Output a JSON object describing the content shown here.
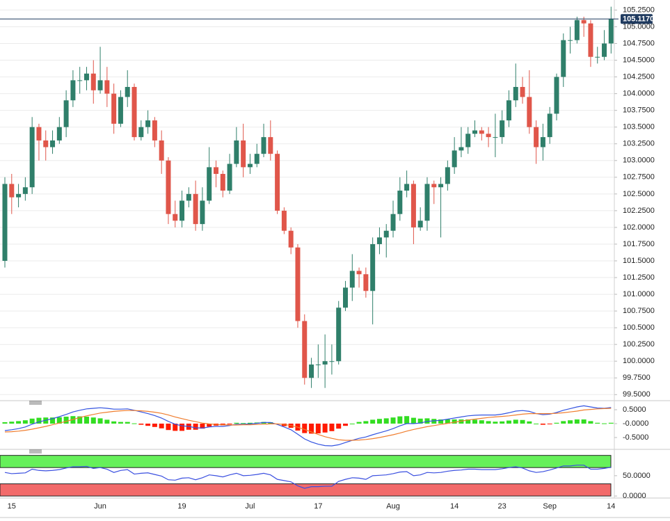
{
  "chart_data": [
    {
      "type": "candlestick",
      "categories": [
        null,
        "15",
        null,
        null,
        null,
        null,
        null,
        null,
        null,
        null,
        null,
        null,
        null,
        null,
        "Jun",
        null,
        null,
        null,
        null,
        null,
        null,
        null,
        null,
        null,
        null,
        null,
        "19",
        null,
        null,
        null,
        null,
        null,
        null,
        null,
        null,
        null,
        "Jul",
        null,
        null,
        null,
        null,
        null,
        null,
        null,
        null,
        null,
        "17",
        null,
        null,
        null,
        null,
        null,
        null,
        null,
        null,
        null,
        null,
        "Aug",
        null,
        null,
        null,
        null,
        null,
        null,
        null,
        null,
        "14",
        null,
        null,
        null,
        null,
        null,
        null,
        "23",
        null,
        null,
        null,
        null,
        null,
        null,
        "Sep",
        null,
        null,
        null,
        null,
        null,
        null,
        null,
        null,
        "14"
      ],
      "open": [
        101.5,
        102.65,
        102.45,
        102.5,
        102.6,
        103.5,
        103.3,
        103.2,
        103.3,
        103.5,
        103.9,
        104.2,
        104.2,
        104.3,
        104.05,
        104.2,
        104.0,
        103.55,
        103.95,
        104.1,
        103.35,
        103.5,
        103.6,
        103.3,
        103.0,
        102.2,
        102.1,
        102.4,
        102.5,
        102.05,
        102.4,
        102.9,
        102.8,
        102.55,
        102.95,
        103.3,
        102.9,
        102.95,
        103.1,
        103.35,
        103.1,
        102.25,
        101.95,
        101.7,
        100.6,
        99.75,
        99.95,
        99.95,
        100.0,
        100.0,
        100.8,
        101.1,
        101.35,
        101.3,
        101.05,
        101.75,
        101.85,
        101.95,
        102.2,
        102.55,
        102.65,
        102.0,
        102.1,
        102.65,
        102.6,
        102.65,
        102.9,
        103.15,
        103.2,
        103.4,
        103.45,
        103.4,
        103.35,
        103.35,
        103.6,
        103.9,
        104.1,
        103.95,
        103.5,
        103.2,
        103.35,
        103.7,
        104.25,
        104.8,
        104.8,
        105.1,
        105.05,
        104.55,
        104.55,
        104.75
      ],
      "high": [
        102.75,
        102.8,
        102.65,
        102.75,
        103.65,
        103.55,
        103.45,
        103.45,
        103.65,
        104.05,
        104.35,
        104.4,
        104.4,
        104.5,
        104.7,
        104.4,
        104.15,
        104.05,
        104.35,
        104.15,
        103.6,
        103.75,
        103.65,
        103.45,
        103.05,
        102.4,
        102.55,
        102.6,
        102.7,
        102.6,
        103.2,
        103.0,
        102.85,
        103.1,
        103.5,
        103.55,
        103.1,
        103.25,
        103.55,
        103.6,
        103.15,
        102.3,
        102.0,
        101.75,
        100.7,
        100.05,
        100.25,
        100.4,
        100.25,
        100.9,
        101.2,
        101.6,
        101.4,
        101.4,
        101.85,
        102.0,
        102.05,
        102.4,
        102.75,
        102.85,
        102.7,
        102.3,
        102.75,
        102.7,
        102.75,
        103.0,
        103.35,
        103.5,
        103.5,
        103.6,
        103.5,
        103.5,
        103.7,
        103.75,
        104.05,
        104.45,
        104.25,
        104.35,
        103.6,
        103.55,
        103.8,
        104.3,
        104.9,
        105.0,
        105.15,
        105.15,
        105.1,
        104.7,
        104.95,
        105.3
      ],
      "low": [
        101.4,
        102.2,
        102.3,
        102.4,
        102.5,
        103.0,
        103.0,
        103.1,
        103.25,
        103.35,
        103.8,
        104.0,
        104.05,
        103.85,
        104.0,
        103.8,
        103.4,
        103.5,
        103.8,
        103.3,
        103.3,
        103.4,
        103.2,
        102.8,
        102.05,
        102.0,
        102.0,
        102.3,
        101.95,
        101.95,
        102.35,
        102.6,
        102.45,
        102.5,
        102.9,
        102.75,
        102.8,
        102.9,
        103.05,
        103.0,
        102.2,
        101.9,
        101.6,
        100.5,
        99.65,
        99.6,
        99.75,
        99.6,
        99.8,
        99.95,
        100.75,
        100.9,
        101.1,
        100.95,
        100.55,
        101.6,
        101.55,
        101.85,
        102.1,
        102.45,
        101.75,
        101.95,
        101.95,
        102.35,
        101.85,
        102.55,
        102.8,
        103.05,
        103.1,
        103.35,
        103.3,
        103.2,
        103.05,
        103.25,
        103.5,
        103.8,
        103.85,
        103.4,
        102.95,
        103.0,
        103.25,
        103.6,
        104.1,
        104.6,
        104.75,
        104.85,
        104.4,
        104.45,
        104.5,
        104.6
      ],
      "close": [
        102.65,
        102.45,
        102.5,
        102.6,
        103.5,
        103.3,
        103.2,
        103.3,
        103.5,
        103.9,
        104.2,
        104.2,
        104.3,
        104.05,
        104.2,
        104.0,
        103.55,
        103.95,
        104.1,
        103.35,
        103.5,
        103.6,
        103.3,
        103.0,
        102.2,
        102.1,
        102.4,
        102.5,
        102.05,
        102.4,
        102.9,
        102.8,
        102.55,
        102.95,
        103.3,
        102.9,
        102.95,
        103.1,
        103.35,
        103.1,
        102.25,
        101.95,
        101.7,
        100.6,
        99.75,
        99.95,
        99.95,
        100.0,
        100.0,
        100.8,
        101.1,
        101.35,
        101.3,
        101.05,
        101.75,
        101.85,
        101.95,
        102.2,
        102.55,
        102.65,
        102.0,
        102.1,
        102.65,
        102.6,
        102.65,
        102.9,
        103.15,
        103.2,
        103.4,
        103.45,
        103.4,
        103.35,
        103.35,
        103.6,
        103.9,
        104.1,
        103.95,
        103.5,
        103.2,
        103.35,
        103.7,
        104.25,
        104.8,
        104.8,
        105.1,
        105.05,
        104.55,
        104.55,
        104.75,
        105.12
      ],
      "up_color": "#2f7f6a",
      "down_color": "#e0564a",
      "ylim": [
        99.42,
        105.4
      ],
      "yticks": [
        {
          "value": 99.5,
          "label": "99.5000"
        },
        {
          "value": 99.75,
          "label": "99.7500"
        },
        {
          "value": 100.0,
          "label": "100.0000"
        },
        {
          "value": 100.25,
          "label": "100.2500"
        },
        {
          "value": 100.5,
          "label": "100.5000"
        },
        {
          "value": 100.75,
          "label": "100.7500"
        },
        {
          "value": 101.0,
          "label": "101.0000"
        },
        {
          "value": 101.25,
          "label": "101.2500"
        },
        {
          "value": 101.5,
          "label": "101.5000"
        },
        {
          "value": 101.75,
          "label": "101.7500"
        },
        {
          "value": 102.0,
          "label": "102.0000"
        },
        {
          "value": 102.25,
          "label": "102.2500"
        },
        {
          "value": 102.5,
          "label": "102.5000"
        },
        {
          "value": 102.75,
          "label": "102.7500"
        },
        {
          "value": 103.0,
          "label": "103.0000"
        },
        {
          "value": 103.25,
          "label": "103.2500"
        },
        {
          "value": 103.5,
          "label": "103.5000"
        },
        {
          "value": 103.75,
          "label": "103.7500"
        },
        {
          "value": 104.0,
          "label": "104.0000"
        },
        {
          "value": 104.25,
          "label": "104.2500"
        },
        {
          "value": 104.5,
          "label": "104.5000"
        },
        {
          "value": 104.75,
          "label": "104.7500"
        },
        {
          "value": 105.0,
          "label": "105.0000"
        },
        {
          "value": 105.25,
          "label": "105.2500"
        }
      ],
      "last_price": {
        "value": 105.117,
        "label": "105.1170"
      },
      "grid": true
    },
    {
      "type": "macd",
      "series": [
        {
          "name": "histogram",
          "values": [
            0.05,
            0.07,
            0.09,
            0.12,
            0.18,
            0.21,
            0.22,
            0.22,
            0.23,
            0.25,
            0.27,
            0.26,
            0.25,
            0.22,
            0.19,
            0.14,
            0.08,
            0.06,
            0.06,
            0.01,
            -0.04,
            -0.08,
            -0.12,
            -0.17,
            -0.23,
            -0.26,
            -0.26,
            -0.22,
            -0.22,
            -0.18,
            -0.11,
            -0.07,
            -0.06,
            -0.02,
            0.03,
            0.02,
            0.03,
            0.04,
            0.06,
            0.05,
            -0.02,
            -0.09,
            -0.15,
            -0.25,
            -0.34,
            -0.36,
            -0.35,
            -0.32,
            -0.27,
            -0.18,
            -0.08,
            0.0,
            0.06,
            0.09,
            0.14,
            0.17,
            0.19,
            0.22,
            0.26,
            0.27,
            0.21,
            0.18,
            0.19,
            0.17,
            0.15,
            0.15,
            0.15,
            0.15,
            0.15,
            0.14,
            0.12,
            0.09,
            0.07,
            0.08,
            0.11,
            0.14,
            0.13,
            0.08,
            0.0,
            -0.04,
            -0.02,
            0.03,
            0.09,
            0.12,
            0.15,
            0.15,
            0.09,
            0.03,
            0.01,
            0.03
          ]
        },
        {
          "name": "macd",
          "color": "#3353e0",
          "values": [
            -0.25,
            -0.22,
            -0.18,
            -0.12,
            -0.02,
            0.06,
            0.12,
            0.18,
            0.25,
            0.33,
            0.42,
            0.48,
            0.53,
            0.55,
            0.57,
            0.55,
            0.52,
            0.52,
            0.53,
            0.48,
            0.42,
            0.36,
            0.29,
            0.2,
            0.08,
            -0.02,
            -0.08,
            -0.1,
            -0.15,
            -0.16,
            -0.12,
            -0.1,
            -0.1,
            -0.07,
            -0.02,
            -0.02,
            -0.01,
            0.01,
            0.04,
            0.04,
            -0.03,
            -0.12,
            -0.22,
            -0.38,
            -0.55,
            -0.66,
            -0.74,
            -0.79,
            -0.8,
            -0.76,
            -0.68,
            -0.6,
            -0.53,
            -0.48,
            -0.4,
            -0.33,
            -0.26,
            -0.18,
            -0.08,
            0.0,
            0.0,
            0.02,
            0.08,
            0.1,
            0.12,
            0.16,
            0.2,
            0.24,
            0.28,
            0.3,
            0.31,
            0.31,
            0.31,
            0.34,
            0.39,
            0.45,
            0.47,
            0.44,
            0.36,
            0.32,
            0.34,
            0.4,
            0.48,
            0.54,
            0.6,
            0.64,
            0.6,
            0.56,
            0.55,
            0.58
          ]
        },
        {
          "name": "signal",
          "color": "#f07d2e",
          "values": [
            -0.3,
            -0.29,
            -0.27,
            -0.24,
            -0.2,
            -0.15,
            -0.1,
            -0.04,
            0.02,
            0.08,
            0.15,
            0.22,
            0.28,
            0.33,
            0.38,
            0.41,
            0.44,
            0.46,
            0.47,
            0.47,
            0.46,
            0.44,
            0.41,
            0.37,
            0.31,
            0.24,
            0.18,
            0.12,
            0.07,
            0.02,
            -0.01,
            -0.03,
            -0.04,
            -0.05,
            -0.05,
            -0.04,
            -0.04,
            -0.03,
            -0.02,
            -0.01,
            -0.01,
            -0.03,
            -0.07,
            -0.13,
            -0.21,
            -0.3,
            -0.39,
            -0.47,
            -0.53,
            -0.58,
            -0.6,
            -0.6,
            -0.59,
            -0.57,
            -0.54,
            -0.5,
            -0.45,
            -0.4,
            -0.34,
            -0.27,
            -0.21,
            -0.16,
            -0.11,
            -0.07,
            -0.03,
            0.01,
            0.05,
            0.09,
            0.13,
            0.16,
            0.19,
            0.22,
            0.24,
            0.26,
            0.28,
            0.31,
            0.34,
            0.36,
            0.36,
            0.36,
            0.36,
            0.37,
            0.39,
            0.42,
            0.45,
            0.49,
            0.51,
            0.53,
            0.54,
            0.55
          ]
        }
      ],
      "up_color": "#33dd22",
      "down_color": "#ff1a00",
      "ylim": [
        -0.825,
        0.725
      ],
      "yticks": [
        {
          "value": 0.5,
          "label": "0.5000"
        },
        {
          "value": 0,
          "label": "-0.0000"
        },
        {
          "value": -0.5,
          "label": "-0.5000"
        }
      ]
    },
    {
      "type": "line",
      "series": [
        {
          "name": "rsi",
          "color": "#3a4fe0",
          "values": [
            58,
            55,
            56,
            57,
            66,
            63,
            62,
            63,
            65,
            69,
            72,
            72,
            73,
            68,
            70,
            66,
            58,
            63,
            65,
            54,
            56,
            57,
            53,
            49,
            40,
            39,
            44,
            45,
            40,
            45,
            52,
            50,
            47,
            52,
            56,
            50,
            51,
            53,
            56,
            52,
            41,
            38,
            35,
            25,
            19,
            23,
            23,
            24,
            24,
            36,
            41,
            45,
            44,
            41,
            50,
            51,
            52,
            55,
            59,
            60,
            50,
            52,
            58,
            57,
            58,
            61,
            63,
            64,
            66,
            66,
            65,
            65,
            65,
            67,
            70,
            72,
            69,
            62,
            58,
            60,
            64,
            69,
            74,
            74,
            76,
            76,
            66,
            66,
            68,
            71
          ]
        }
      ],
      "bands": [
        {
          "range": [
            70,
            100
          ],
          "color": "#66f05a"
        },
        {
          "range": [
            0,
            30
          ],
          "color": "#f26a6a"
        }
      ],
      "ylim": [
        -5,
        108
      ],
      "yticks": [
        {
          "value": 50,
          "label": "50.0000"
        },
        {
          "value": 0,
          "label": "0.0000"
        }
      ]
    }
  ]
}
